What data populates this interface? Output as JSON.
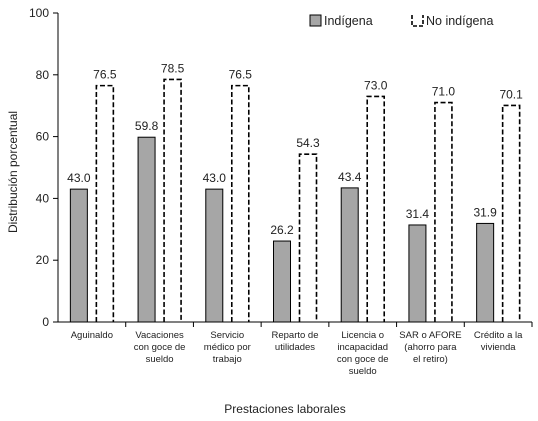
{
  "chart_data": {
    "type": "bar",
    "title": "",
    "xlabel": "Prestaciones laborales",
    "ylabel": "Distribución porcentual",
    "ylim": [
      0,
      100
    ],
    "yticks": [
      0,
      20,
      40,
      60,
      80,
      100
    ],
    "grid": false,
    "legend_position": "top-right",
    "categories": [
      [
        "Aguinaldo"
      ],
      [
        "Vacaciones",
        "con goce de",
        "sueldo"
      ],
      [
        "Servicio",
        "médico por",
        "trabajo"
      ],
      [
        "Reparto de",
        "utilidades"
      ],
      [
        "Licencia o",
        "incapacidad",
        "con goce de",
        "sueldo"
      ],
      [
        "SAR o AFORE",
        "(ahorro para",
        "el retiro)"
      ],
      [
        "Crédito a la",
        "vivienda"
      ]
    ],
    "series": [
      {
        "name": "Indígena",
        "values": [
          43.0,
          59.8,
          43.0,
          26.2,
          43.4,
          31.4,
          31.9
        ],
        "labels": [
          "43.0",
          "59.8",
          "43.0",
          "26.2",
          "43.4",
          "31.4",
          "31.9"
        ],
        "style": "solid",
        "fill": "#a6a6a6",
        "stroke": "#000000"
      },
      {
        "name": "No indígena",
        "values": [
          76.5,
          78.5,
          76.5,
          54.3,
          73.0,
          71.0,
          70.1
        ],
        "labels": [
          "76.5",
          "78.5",
          "76.5",
          "54.3",
          "73.0",
          "71.0",
          "70.1"
        ],
        "style": "dashed",
        "fill": "#ffffff",
        "stroke": "#000000"
      }
    ]
  }
}
